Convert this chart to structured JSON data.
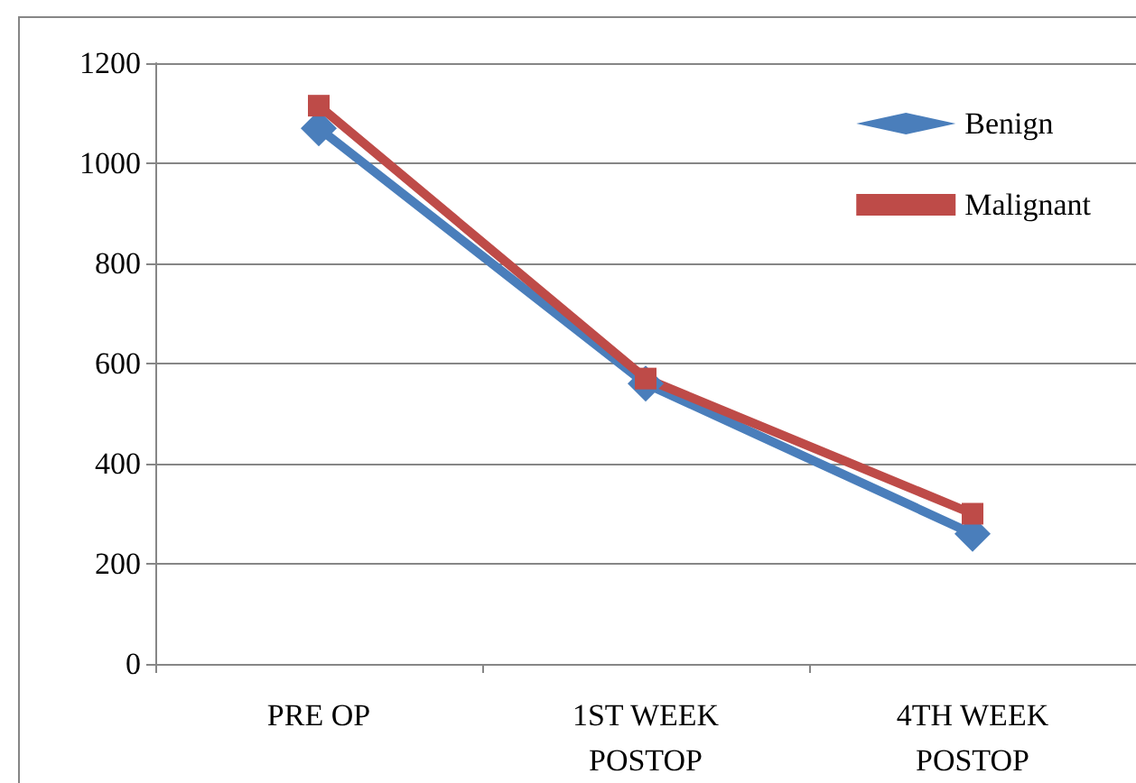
{
  "chart_data": {
    "type": "line",
    "categories": [
      "PRE OP",
      "1ST WEEK\nPOSTOP",
      "4TH WEEK\nPOSTOP"
    ],
    "series": [
      {
        "name": "Benign",
        "color": "#4a7ebb",
        "marker": "diamond",
        "values": [
          1070,
          560,
          260
        ]
      },
      {
        "name": "Malignant",
        "color": "#be4b48",
        "marker": "square",
        "values": [
          1115,
          570,
          300
        ]
      }
    ],
    "ylim": [
      0,
      1200
    ],
    "yticks": [
      0,
      200,
      400,
      600,
      800,
      1000,
      1200
    ],
    "grid": "y",
    "legend": "top right"
  }
}
